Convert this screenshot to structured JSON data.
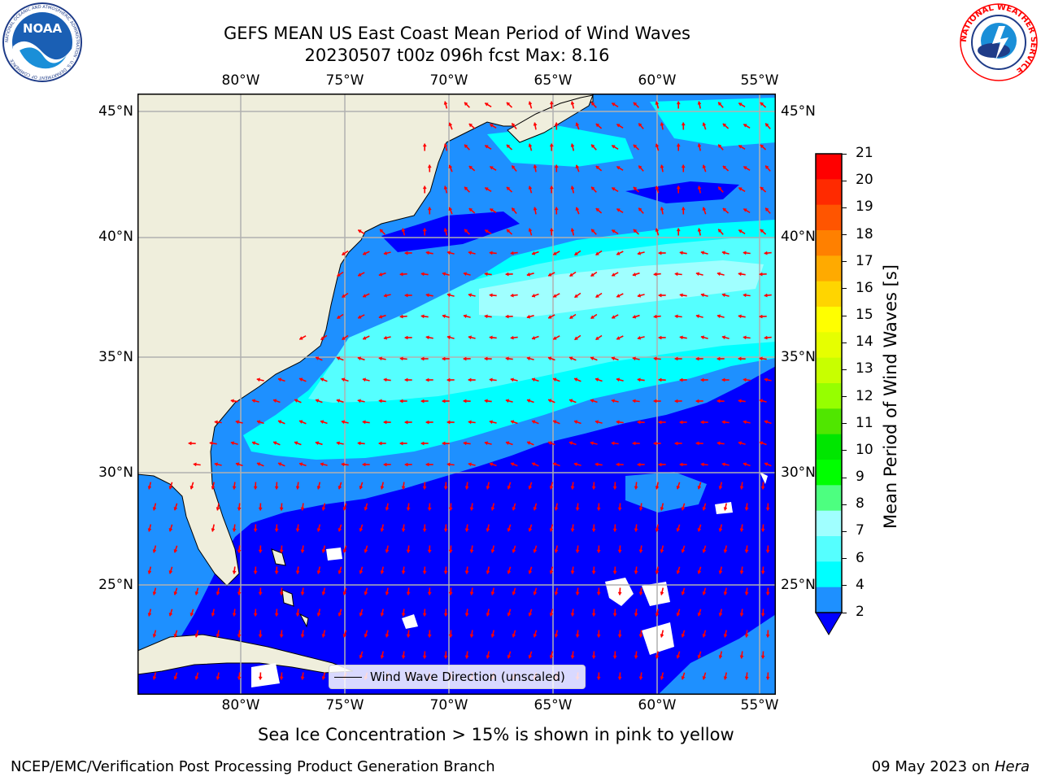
{
  "title": {
    "line1": "GEFS MEAN US East Coast Mean Period of Wind Waves",
    "line2": "20230507 t00z 096h fcst   Max: 8.16"
  },
  "logos": {
    "noaa": {
      "text": "NOAA",
      "ring": "NATIONAL OCEANIC AND ATMOSPHERIC ADMINISTRATION · U.S. DEPARTMENT OF COMMERCE"
    },
    "nws": {
      "ring": "NATIONAL WEATHER SERVICE"
    }
  },
  "map": {
    "x_ticks": [
      "80°W",
      "75°W",
      "70°W",
      "65°W",
      "60°W",
      "55°W"
    ],
    "y_ticks": [
      "45°N",
      "40°N",
      "35°N",
      "30°N",
      "25°N"
    ],
    "legend_label": "Wind Wave Direction (unscaled)",
    "colors": {
      "land": "#efeedc",
      "grid": "#b0b0b0",
      "arrow": "#ff0000",
      "coast": "#000000"
    }
  },
  "colorbar": {
    "label": "Mean Period of Wind Waves [s]",
    "ticks": [
      "21",
      "20",
      "19",
      "18",
      "17",
      "16",
      "15",
      "14",
      "13",
      "12",
      "11",
      "10",
      "9",
      "8",
      "7",
      "6",
      "4",
      "2"
    ],
    "colors": [
      "#ff0000",
      "#ff2a00",
      "#ff5500",
      "#ff8000",
      "#ffaa00",
      "#ffd500",
      "#ffff00",
      "#e6ff00",
      "#c8ff00",
      "#96ff00",
      "#50e600",
      "#00e600",
      "#00ff00",
      "#4dff80",
      "#a0ffff",
      "#55ffff",
      "#00ffff",
      "#1e90ff"
    ],
    "extend_color": "#0000ff"
  },
  "caption": "Sea Ice Concentration > 15% is shown in pink to yellow",
  "footer": {
    "left": "NCEP/EMC/Verification Post Processing Product Generation Branch",
    "right_prefix": "09 May 2023 on ",
    "right_host": "Hera"
  }
}
